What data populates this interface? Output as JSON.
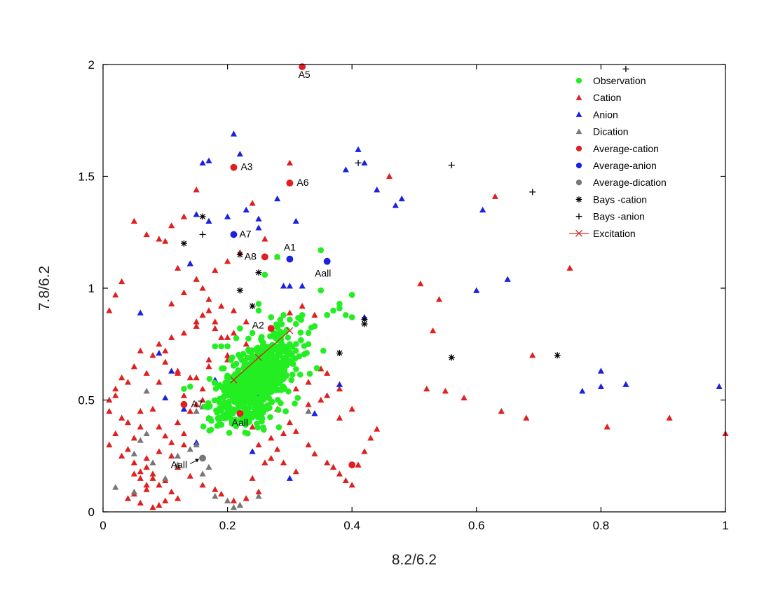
{
  "chart_data": {
    "type": "scatter",
    "title": "",
    "xlabel": "8.2/6.2",
    "ylabel": "7.8/6.2",
    "xlim": [
      0,
      1
    ],
    "ylim": [
      0,
      2
    ],
    "xticks": [
      "0",
      "0.2",
      "0.4",
      "0.6",
      "0.8",
      "1"
    ],
    "yticks": [
      "0",
      "0.5",
      "1",
      "1.5",
      "2"
    ],
    "grid": false,
    "legend_position": "top-right",
    "series": [
      {
        "name": "Observation",
        "marker": "circle",
        "color": "#22ee22",
        "cluster": {
          "center": [
            0.245,
            0.58
          ],
          "spread": [
            0.05,
            0.11
          ],
          "angle_deg": 68,
          "count": 700
        },
        "x": [
          0.13,
          0.14,
          0.18,
          0.19,
          0.2,
          0.22,
          0.24,
          0.25,
          0.28,
          0.26,
          0.3,
          0.32,
          0.31,
          0.35,
          0.36,
          0.37,
          0.38,
          0.39,
          0.4,
          0.35,
          0.33,
          0.31,
          0.29,
          0.27,
          0.23,
          0.21,
          0.2,
          0.22,
          0.3,
          0.33,
          0.34,
          0.36,
          0.38,
          0.4,
          0.25,
          0.28
        ],
        "y": [
          0.55,
          0.56,
          0.74,
          0.74,
          0.74,
          0.82,
          0.8,
          0.93,
          1.14,
          1.06,
          0.86,
          0.88,
          0.84,
          1.17,
          0.88,
          0.9,
          0.91,
          0.88,
          0.87,
          0.99,
          0.75,
          0.72,
          0.88,
          0.87,
          0.66,
          0.57,
          0.45,
          0.82,
          0.75,
          0.8,
          0.83,
          0.88,
          0.93,
          0.97,
          0.9,
          0.78
        ]
      },
      {
        "name": "Cation",
        "marker": "triangle",
        "color": "#e02020",
        "x": [
          0.01,
          0.02,
          0.01,
          0.03,
          0.04,
          0.02,
          0.01,
          0.05,
          0.06,
          0.04,
          0.03,
          0.05,
          0.07,
          0.06,
          0.08,
          0.09,
          0.07,
          0.05,
          0.04,
          0.06,
          0.08,
          0.1,
          0.09,
          0.11,
          0.12,
          0.1,
          0.08,
          0.07,
          0.09,
          0.11,
          0.13,
          0.12,
          0.14,
          0.15,
          0.13,
          0.16,
          0.14,
          0.12,
          0.1,
          0.08,
          0.06,
          0.05,
          0.03,
          0.02,
          0.04,
          0.07,
          0.09,
          0.11,
          0.13,
          0.15,
          0.16,
          0.17,
          0.18,
          0.19,
          0.2,
          0.17,
          0.15,
          0.13,
          0.11,
          0.12,
          0.14,
          0.16,
          0.18,
          0.19,
          0.21,
          0.22,
          0.23,
          0.25,
          0.24,
          0.26,
          0.28,
          0.27,
          0.29,
          0.3,
          0.31,
          0.33,
          0.34,
          0.36,
          0.37,
          0.38,
          0.39,
          0.4,
          0.41,
          0.42,
          0.43,
          0.44,
          0.4,
          0.38,
          0.36,
          0.35,
          0.33,
          0.31,
          0.29,
          0.27,
          0.25,
          0.23,
          0.21,
          0.19,
          0.17,
          0.15,
          0.13,
          0.11,
          0.09,
          0.07,
          0.05,
          0.03,
          0.02,
          0.01,
          0.08,
          0.09,
          0.1,
          0.07,
          0.06,
          0.05,
          0.1,
          0.12,
          0.14,
          0.16,
          0.11,
          0.13,
          0.15,
          0.18,
          0.2,
          0.22,
          0.24,
          0.26,
          0.28,
          0.3,
          0.32,
          0.34,
          0.36,
          0.38,
          0.25,
          0.27,
          0.29,
          0.31,
          0.46,
          0.51,
          0.52,
          0.53,
          0.54,
          0.55,
          0.58,
          0.63,
          0.64,
          0.68,
          0.69,
          0.75,
          0.81,
          0.91,
          1.0,
          0.3,
          0.25,
          0.2,
          0.22,
          0.18,
          0.16,
          0.19,
          0.24,
          0.28,
          0.33,
          0.35,
          0.23,
          0.21,
          0.2,
          0.18,
          0.17,
          0.15,
          0.1,
          0.12,
          0.09,
          0.06
        ],
        "y": [
          0.5,
          0.52,
          0.45,
          0.42,
          0.4,
          0.35,
          0.3,
          0.33,
          0.38,
          0.28,
          0.25,
          0.22,
          0.2,
          0.18,
          0.15,
          0.12,
          0.1,
          0.08,
          0.06,
          0.04,
          0.02,
          0.05,
          0.03,
          0.09,
          0.06,
          0.14,
          0.17,
          0.24,
          0.27,
          0.31,
          0.35,
          0.4,
          0.45,
          0.48,
          0.52,
          0.55,
          0.6,
          0.63,
          0.67,
          0.7,
          0.72,
          0.65,
          0.6,
          0.55,
          0.58,
          0.62,
          0.75,
          0.78,
          0.8,
          0.83,
          0.88,
          0.9,
          0.85,
          0.78,
          0.7,
          0.65,
          0.6,
          0.3,
          0.25,
          0.2,
          0.16,
          0.12,
          0.1,
          0.08,
          0.05,
          0.03,
          0.06,
          0.09,
          0.15,
          0.22,
          0.28,
          0.33,
          0.35,
          0.4,
          0.36,
          0.3,
          0.26,
          0.22,
          0.2,
          0.17,
          0.14,
          0.12,
          0.21,
          0.27,
          0.33,
          0.37,
          0.46,
          0.42,
          0.52,
          0.5,
          0.48,
          0.55,
          0.6,
          0.65,
          0.7,
          0.75,
          0.8,
          0.92,
          0.95,
          1.44,
          1.32,
          1.28,
          1.22,
          1.24,
          1.3,
          1.03,
          0.97,
          0.9,
          0.46,
          0.38,
          0.34,
          0.12,
          0.15,
          0.17,
          1.21,
          1.09,
          1.11,
          1.0,
          0.93,
          0.98,
          1.04,
          1.08,
          1.12,
          1.16,
          1.38,
          1.22,
          1.14,
          1.56,
          0.92,
          0.88,
          0.62,
          0.55,
          0.3,
          0.24,
          0.22,
          0.18,
          1.5,
          1.02,
          0.55,
          0.81,
          0.95,
          0.54,
          0.51,
          1.41,
          0.45,
          0.42,
          0.7,
          1.09,
          0.38,
          0.42,
          0.35,
          0.89,
          0.72,
          0.68,
          0.62,
          0.58,
          0.5,
          0.42,
          0.38,
          0.46,
          0.58,
          0.64,
          0.85,
          0.9,
          0.78,
          0.82,
          0.68,
          0.85,
          0.72,
          0.62,
          0.58,
          0.45
        ],
        "y_note": ""
      },
      {
        "name": "Anion",
        "marker": "triangle",
        "color": "#1a22e0",
        "x": [
          0.15,
          0.16,
          0.17,
          0.17,
          0.21,
          0.22,
          0.25,
          0.25,
          0.28,
          0.3,
          0.31,
          0.32,
          0.39,
          0.41,
          0.42,
          0.44,
          0.47,
          0.48,
          0.6,
          0.61,
          0.65,
          0.77,
          0.8,
          0.8,
          0.84,
          0.99,
          0.14,
          0.2,
          0.23,
          0.29,
          0.42,
          0.09,
          0.06,
          0.11,
          0.1,
          0.13,
          0.15,
          0.17,
          0.24,
          0.27,
          0.3,
          0.38,
          0.25,
          0.18,
          0.24,
          0.25,
          0.34
        ],
        "y": [
          1.33,
          1.56,
          1.57,
          1.3,
          1.69,
          1.6,
          1.31,
          1.27,
          1.4,
          1.01,
          1.3,
          1.01,
          1.53,
          1.62,
          1.56,
          1.44,
          1.37,
          1.4,
          0.99,
          1.35,
          1.04,
          0.54,
          0.56,
          0.63,
          0.57,
          0.56,
          1.11,
          1.32,
          1.35,
          1.01,
          0.87,
          0.71,
          0.89,
          0.63,
          0.51,
          0.46,
          0.31,
          0.42,
          0.27,
          0.72,
          0.15,
          0.57,
          0.53,
          0.59,
          0.67,
          0.49,
          0.44
        ]
      },
      {
        "name": "Dication",
        "marker": "triangle",
        "color": "#777777",
        "x": [
          0.02,
          0.05,
          0.05,
          0.06,
          0.07,
          0.08,
          0.1,
          0.12,
          0.14,
          0.15,
          0.16,
          0.17,
          0.18,
          0.2,
          0.21,
          0.22,
          0.25,
          0.16,
          0.27,
          0.33,
          0.12,
          0.07,
          0.21,
          0.15
        ],
        "y": [
          0.11,
          0.09,
          0.26,
          0.32,
          0.54,
          0.22,
          0.15,
          0.21,
          0.28,
          0.45,
          0.47,
          0.2,
          0.07,
          0.05,
          0.02,
          0.03,
          0.07,
          0.17,
          0.72,
          0.45,
          0.25,
          0.35,
          0.41,
          0.3
        ]
      },
      {
        "name": "Average-cation",
        "marker": "circle",
        "color": "#e02020",
        "points": [
          {
            "x": 0.32,
            "y": 1.99,
            "label": "A5"
          },
          {
            "x": 0.21,
            "y": 1.54,
            "label": "A3"
          },
          {
            "x": 0.3,
            "y": 1.47,
            "label": "A6"
          },
          {
            "x": 0.26,
            "y": 1.14,
            "label": "A8"
          },
          {
            "x": 0.27,
            "y": 0.82,
            "label": "A2"
          },
          {
            "x": 0.13,
            "y": 0.48,
            "label": "A7"
          },
          {
            "x": 0.22,
            "y": 0.44,
            "label": "Aall"
          },
          {
            "x": 0.4,
            "y": 0.21,
            "label": ""
          }
        ]
      },
      {
        "name": "Average-anion",
        "marker": "circle",
        "color": "#1a22e0",
        "points": [
          {
            "x": 0.21,
            "y": 1.24,
            "label": "A7"
          },
          {
            "x": 0.3,
            "y": 1.13,
            "label": "A1"
          },
          {
            "x": 0.36,
            "y": 1.12,
            "label": "Aall"
          }
        ]
      },
      {
        "name": "Average-dication",
        "marker": "circle",
        "color": "#777777",
        "points": [
          {
            "x": 0.16,
            "y": 0.24,
            "label": "Aall"
          }
        ]
      },
      {
        "name": "Bays -cation",
        "marker": "asterisk",
        "color": "#000000",
        "x": [
          0.16,
          0.13,
          0.22,
          0.25,
          0.22,
          0.24,
          0.38,
          0.42,
          0.42,
          0.56,
          0.73
        ],
        "y": [
          1.32,
          1.2,
          1.15,
          1.07,
          0.99,
          0.92,
          0.71,
          0.86,
          0.84,
          0.69,
          0.7
        ]
      },
      {
        "name": "Bays -anion",
        "marker": "plus",
        "color": "#000000",
        "x": [
          0.16,
          0.41,
          0.56,
          0.69,
          0.84
        ],
        "y": [
          1.24,
          1.56,
          1.55,
          1.43,
          1.98
        ]
      },
      {
        "name": "Excitation",
        "marker": "x-line",
        "color": "#cc2222",
        "x": [
          0.21,
          0.25,
          0.3
        ],
        "y": [
          0.59,
          0.69,
          0.81
        ]
      }
    ]
  }
}
